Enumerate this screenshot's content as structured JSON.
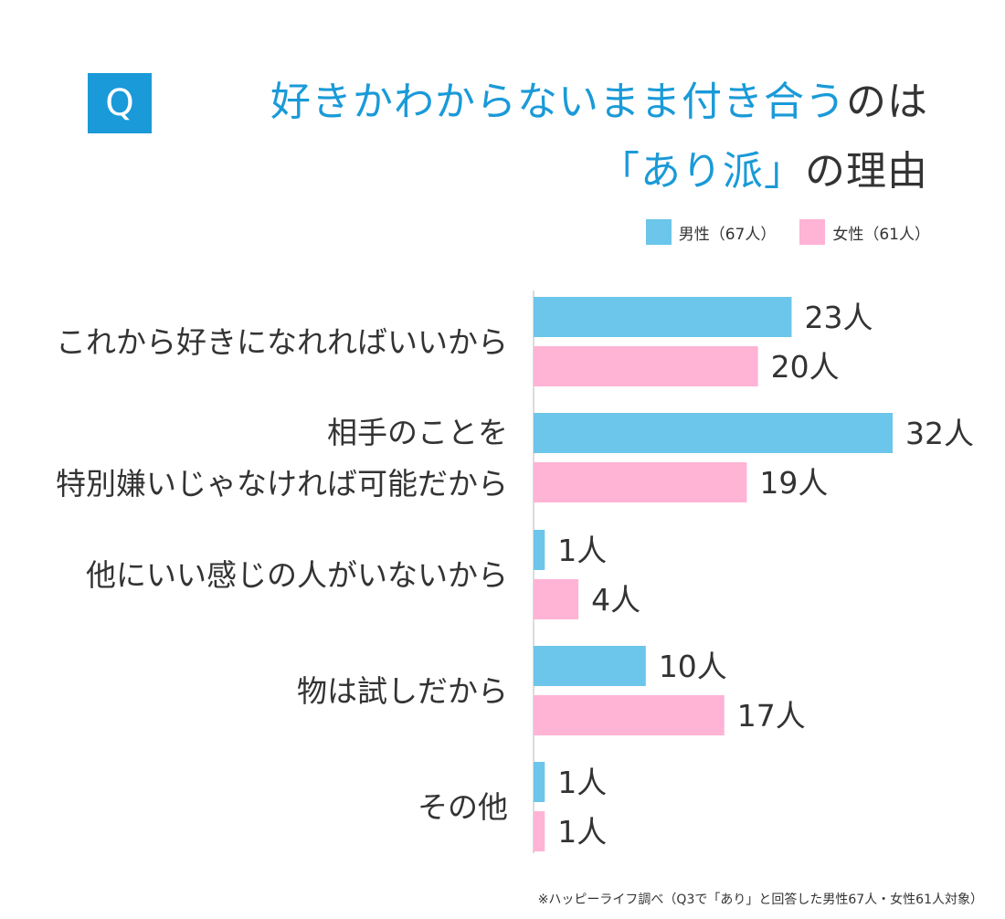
{
  "title": {
    "badge": "Q",
    "line1_highlight": "好きかわからないまま付き合う",
    "line1_rest": "のは",
    "line2_highlight": "「あり派」",
    "line2_rest": "の理由"
  },
  "legend": {
    "male": "男性（67人）",
    "female": "女性（61人）"
  },
  "colors": {
    "male": "#6cc5ea",
    "female": "#ffb3d5",
    "accent": "#1a9ad8",
    "axis": "#b8b8b8"
  },
  "chart_data": {
    "type": "bar",
    "orientation": "horizontal",
    "title": "好きかわからないまま付き合うのは「あり派」の理由",
    "unit": "人",
    "categories": [
      [
        "これから好きになれればいいから"
      ],
      [
        "相手のことを",
        "特別嫌いじゃなければ可能だから"
      ],
      [
        "他にいい感じの人がいないから"
      ],
      [
        "物は試しだから"
      ],
      [
        "その他"
      ]
    ],
    "series": [
      {
        "name": "男性（67人）",
        "values": [
          23,
          32,
          1,
          10,
          1
        ]
      },
      {
        "name": "女性（61人）",
        "values": [
          20,
          19,
          4,
          17,
          1
        ]
      }
    ],
    "value_labels": [
      [
        "23人",
        "32人",
        "1人",
        "10人",
        "1人"
      ],
      [
        "20人",
        "19人",
        "4人",
        "17人",
        "1人"
      ]
    ],
    "xlim": [
      0,
      32
    ],
    "legend_position": "top-right"
  },
  "source": "※ハッピーライフ調べ（Q3で「あり」と回答した男性67人・女性61人対象）"
}
